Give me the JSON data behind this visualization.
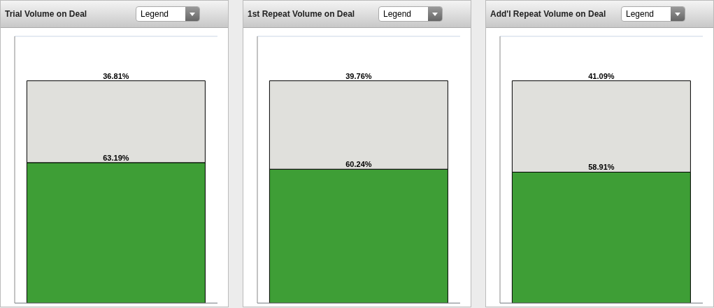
{
  "chart_data": [
    {
      "type": "bar",
      "title": "Trial Volume on Deal",
      "annotations": [
        "Legend"
      ],
      "categories": [
        null
      ],
      "stacked": true,
      "ylim": [
        0,
        120
      ],
      "grid": "y",
      "tick_labels": false,
      "series": [
        {
          "color": "#3e9e36",
          "values": [
            63.19
          ],
          "value_labels": [
            "63.19%"
          ]
        },
        {
          "color": "#e0e0dc",
          "values": [
            36.81
          ],
          "value_labels": [
            "36.81%"
          ]
        }
      ]
    },
    {
      "type": "bar",
      "title": "1st Repeat Volume on Deal",
      "annotations": [
        "Legend"
      ],
      "categories": [
        null
      ],
      "stacked": true,
      "ylim": [
        0,
        120
      ],
      "grid": "y",
      "tick_labels": false,
      "series": [
        {
          "color": "#3e9e36",
          "values": [
            60.24
          ],
          "value_labels": [
            "60.24%"
          ]
        },
        {
          "color": "#e0e0dc",
          "values": [
            39.76
          ],
          "value_labels": [
            "39.76%"
          ]
        }
      ]
    },
    {
      "type": "bar",
      "title": "Add'l Repeat Volume on Deal",
      "annotations": [
        "Legend"
      ],
      "categories": [
        null
      ],
      "stacked": true,
      "ylim": [
        0,
        120
      ],
      "grid": "y",
      "tick_labels": false,
      "series": [
        {
          "color": "#3e9e36",
          "values": [
            58.91
          ],
          "value_labels": [
            "58.91%"
          ]
        },
        {
          "color": "#e0e0dc",
          "values": [
            41.09
          ],
          "value_labels": [
            "41.09%"
          ]
        }
      ]
    }
  ]
}
